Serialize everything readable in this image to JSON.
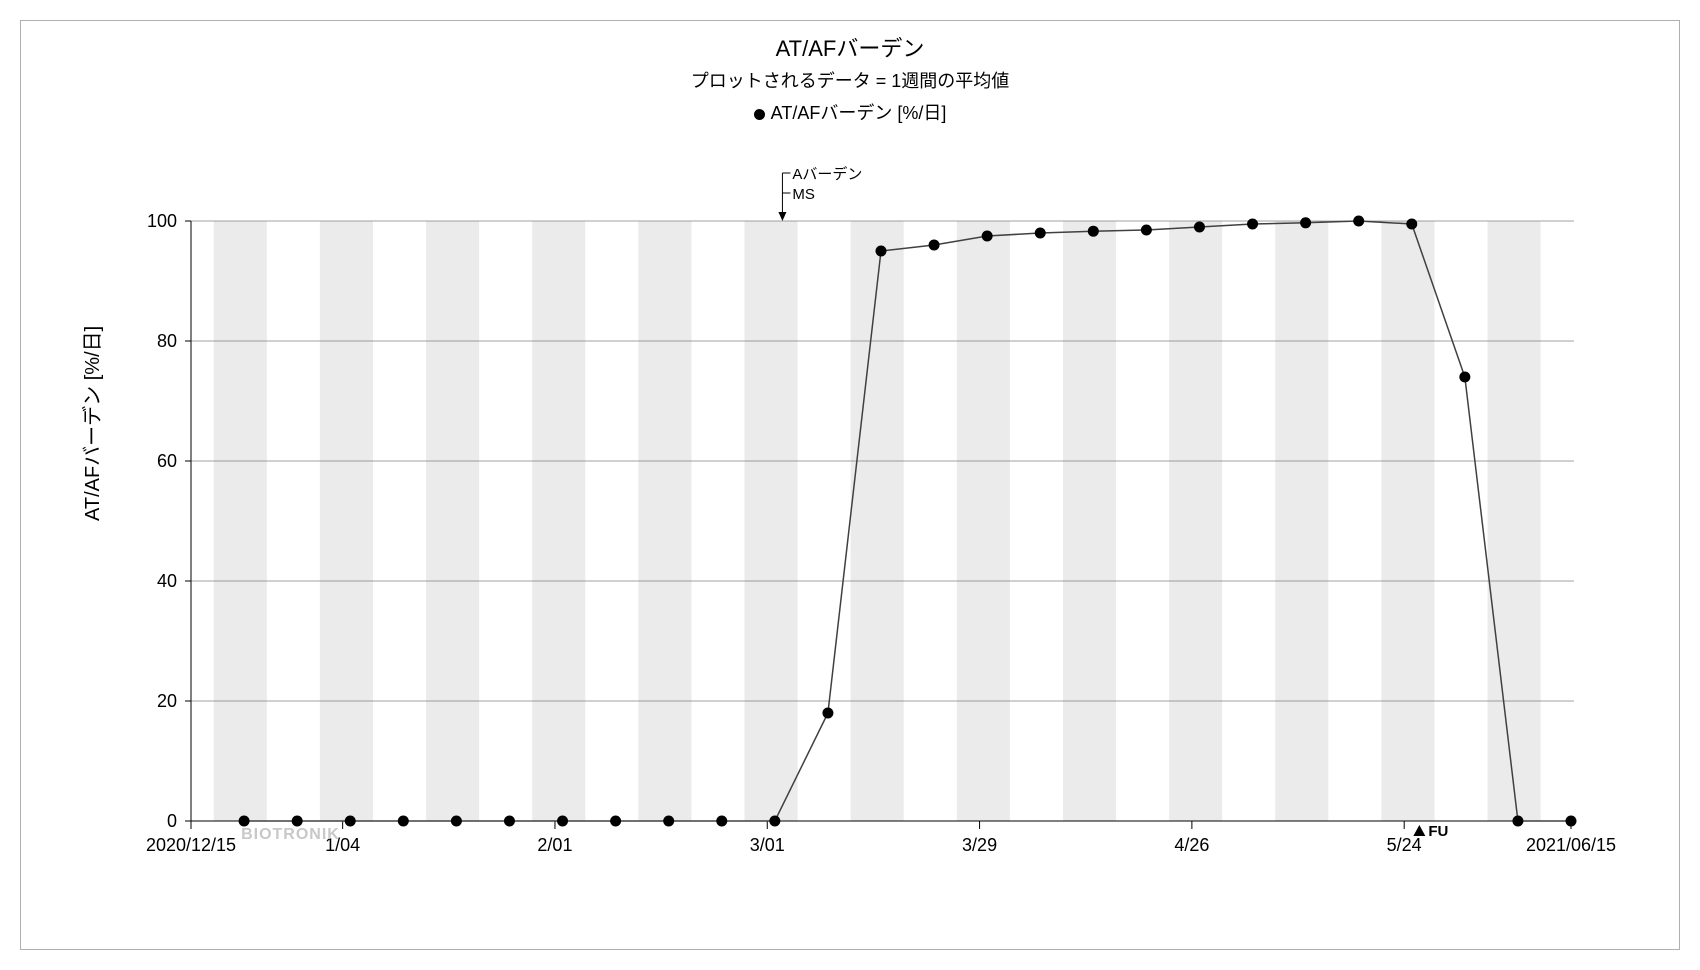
{
  "chart": {
    "type": "line",
    "title": "AT/AFバーデン",
    "subtitle": "プロットされるデータ = 1週間の平均値",
    "legend_label": "AT/AFバーデン [%/日]",
    "y_axis_label": "AT/AFバーデン [%/日]",
    "background_color": "#ffffff",
    "border_color": "#b0b0b0",
    "grid_color": "#808080",
    "band_color": "#ebebeb",
    "line_color": "#404040",
    "marker_color": "#000000",
    "marker_radius": 5.5,
    "line_width": 1.5,
    "ylim": [
      0,
      100
    ],
    "ytick_step": 20,
    "yticks": [
      0,
      20,
      40,
      60,
      80,
      100
    ],
    "x_domain_days": [
      0,
      182
    ],
    "x_tick_positions": [
      0,
      20,
      48,
      76,
      104,
      132,
      160,
      182
    ],
    "x_tick_labels": [
      "2020/12/15",
      "1/04",
      "2/01",
      "3/01",
      "3/29",
      "4/26",
      "5/24",
      "2021/06/15"
    ],
    "band_width_days": 7,
    "band_start_offset_days": 3,
    "watermark_text": "BIOTRONIK",
    "watermark_color": "#c8c8c8",
    "annotation": {
      "x_day": 78,
      "lines": [
        "Aバーデン",
        "MS"
      ]
    },
    "fu_marker": {
      "x_day": 162,
      "label": "FU"
    },
    "data_points": [
      {
        "x": 7,
        "y": 0
      },
      {
        "x": 14,
        "y": 0
      },
      {
        "x": 21,
        "y": 0
      },
      {
        "x": 28,
        "y": 0
      },
      {
        "x": 35,
        "y": 0
      },
      {
        "x": 42,
        "y": 0
      },
      {
        "x": 49,
        "y": 0
      },
      {
        "x": 56,
        "y": 0
      },
      {
        "x": 63,
        "y": 0
      },
      {
        "x": 70,
        "y": 0
      },
      {
        "x": 77,
        "y": 0
      },
      {
        "x": 84,
        "y": 18
      },
      {
        "x": 91,
        "y": 95
      },
      {
        "x": 98,
        "y": 96
      },
      {
        "x": 105,
        "y": 97.5
      },
      {
        "x": 112,
        "y": 98
      },
      {
        "x": 119,
        "y": 98.3
      },
      {
        "x": 126,
        "y": 98.5
      },
      {
        "x": 133,
        "y": 99
      },
      {
        "x": 140,
        "y": 99.5
      },
      {
        "x": 147,
        "y": 99.7
      },
      {
        "x": 154,
        "y": 100
      },
      {
        "x": 161,
        "y": 99.5
      },
      {
        "x": 168,
        "y": 74
      },
      {
        "x": 175,
        "y": 0
      },
      {
        "x": 182,
        "y": 0
      }
    ]
  }
}
